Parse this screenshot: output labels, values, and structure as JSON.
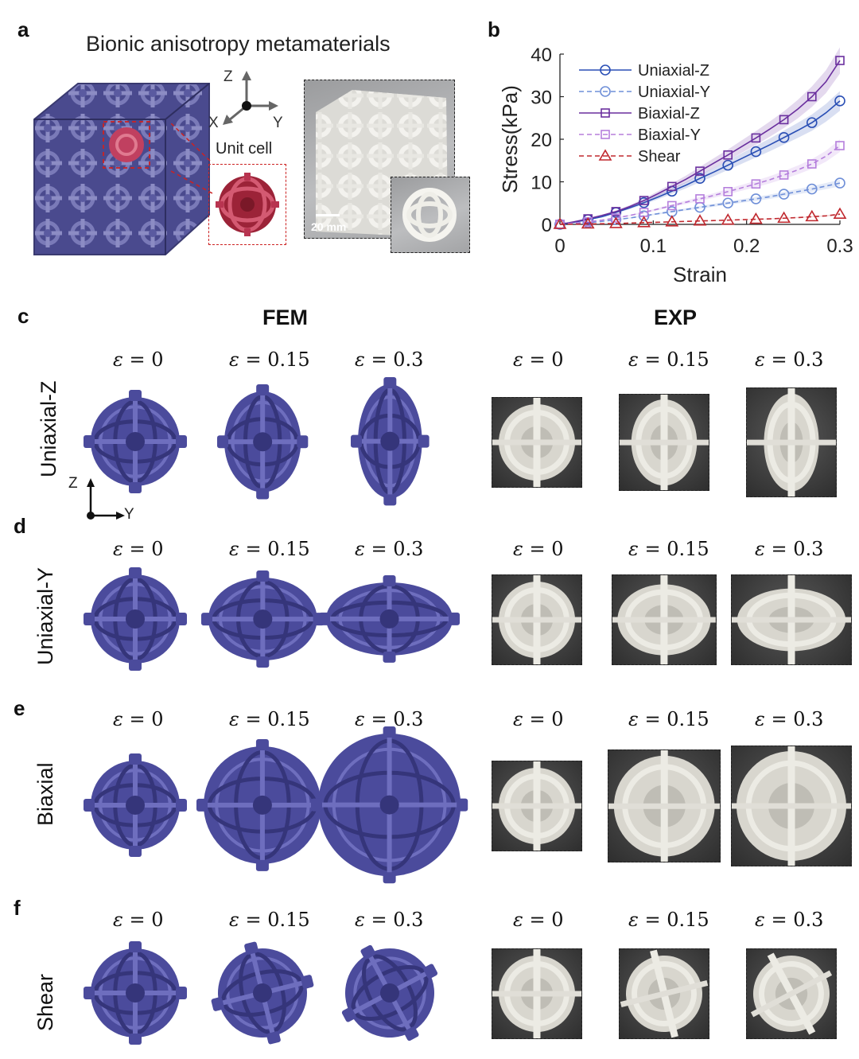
{
  "panel_labels": {
    "a": "a",
    "b": "b",
    "c": "c",
    "d": "d",
    "e": "e",
    "f": "f"
  },
  "panel_a": {
    "title": "Bionic anisotropy metamaterials",
    "axes": {
      "z": "Z",
      "x": "X",
      "y": "Y"
    },
    "unit_cell_label": "Unit cell",
    "scale_bar": "20 mm"
  },
  "chart_data": {
    "type": "line",
    "xlabel": "Strain",
    "ylabel": "Stress(kPa)",
    "xlim": [
      0,
      0.3
    ],
    "ylim": [
      0,
      40
    ],
    "xticks": [
      "0",
      "0.1",
      "0.2",
      "0.3"
    ],
    "yticks": [
      "0",
      "10",
      "20",
      "30",
      "40"
    ],
    "grid": false,
    "legend_position": "top-left",
    "x": [
      0,
      0.015,
      0.03,
      0.045,
      0.06,
      0.075,
      0.09,
      0.105,
      0.12,
      0.135,
      0.15,
      0.165,
      0.18,
      0.195,
      0.21,
      0.225,
      0.24,
      0.255,
      0.27,
      0.285,
      0.3
    ],
    "series": [
      {
        "name": "Uniaxial-Z",
        "color": "#2a4fb5",
        "dash": "solid",
        "marker": "circle",
        "values": [
          0,
          0.5,
          1.1,
          1.8,
          2.8,
          3.9,
          5.1,
          6.4,
          7.8,
          9.2,
          10.8,
          12.3,
          13.9,
          15.5,
          17.1,
          18.7,
          20.4,
          22.1,
          23.9,
          26.2,
          29.0
        ]
      },
      {
        "name": "Uniaxial-Y",
        "color": "#6f8fd8",
        "dash": "dashed",
        "marker": "circle",
        "values": [
          0,
          0.2,
          0.4,
          0.7,
          1.1,
          1.5,
          2.0,
          2.5,
          3.0,
          3.5,
          4.0,
          4.5,
          5.0,
          5.5,
          6.0,
          6.5,
          7.1,
          7.7,
          8.3,
          9.0,
          9.7
        ]
      },
      {
        "name": "Biaxial-Z",
        "color": "#6a2f9e",
        "dash": "solid",
        "marker": "square",
        "values": [
          0,
          0.6,
          1.3,
          2.1,
          3.0,
          4.2,
          5.6,
          7.2,
          8.9,
          10.6,
          12.5,
          14.4,
          16.3,
          18.3,
          20.3,
          22.4,
          24.6,
          27.1,
          30.0,
          33.5,
          38.5
        ]
      },
      {
        "name": "Biaxial-Y",
        "color": "#b57fdc",
        "dash": "dashed",
        "marker": "square",
        "values": [
          0,
          0.3,
          0.6,
          1.0,
          1.5,
          2.1,
          2.8,
          3.6,
          4.4,
          5.2,
          6.0,
          6.8,
          7.7,
          8.6,
          9.5,
          10.5,
          11.6,
          12.8,
          14.2,
          16.0,
          18.5
        ]
      },
      {
        "name": "Shear",
        "color": "#c0282e",
        "dash": "dashed",
        "marker": "triangle",
        "values": [
          0,
          0.05,
          0.1,
          0.15,
          0.2,
          0.3,
          0.4,
          0.5,
          0.6,
          0.7,
          0.8,
          0.9,
          1.0,
          1.1,
          1.2,
          1.3,
          1.45,
          1.6,
          1.8,
          2.0,
          2.4
        ]
      }
    ]
  },
  "comparison": {
    "fem_header": "FEM",
    "exp_header": "EXP",
    "axis_z": "Z",
    "axis_y": "Y",
    "epsilon_symbol": "ε",
    "strain_values": [
      "= 0",
      "= 0.15",
      "= 0.3"
    ],
    "rows": [
      {
        "label": "Uniaxial-Z",
        "sx": [
          1.0,
          0.86,
          0.72
        ],
        "sy": [
          1.0,
          1.13,
          1.28
        ]
      },
      {
        "label": "Uniaxial-Y",
        "sx": [
          1.0,
          1.22,
          1.42
        ],
        "sy": [
          1.0,
          0.93,
          0.82
        ]
      },
      {
        "label": "Biaxial",
        "sx": [
          1.0,
          1.32,
          1.6
        ],
        "sy": [
          1.0,
          1.32,
          1.6
        ]
      },
      {
        "label": "Shear",
        "sx": [
          1.0,
          1.0,
          1.0
        ],
        "sy": [
          1.0,
          1.0,
          1.0
        ]
      }
    ]
  },
  "colors": {
    "fem": "#4b4b9c",
    "fem_dark": "#35357a",
    "unit_cell": "#a3283c",
    "exp_bg": "#3e3e3e",
    "exp_struct": "#ecebe4"
  }
}
